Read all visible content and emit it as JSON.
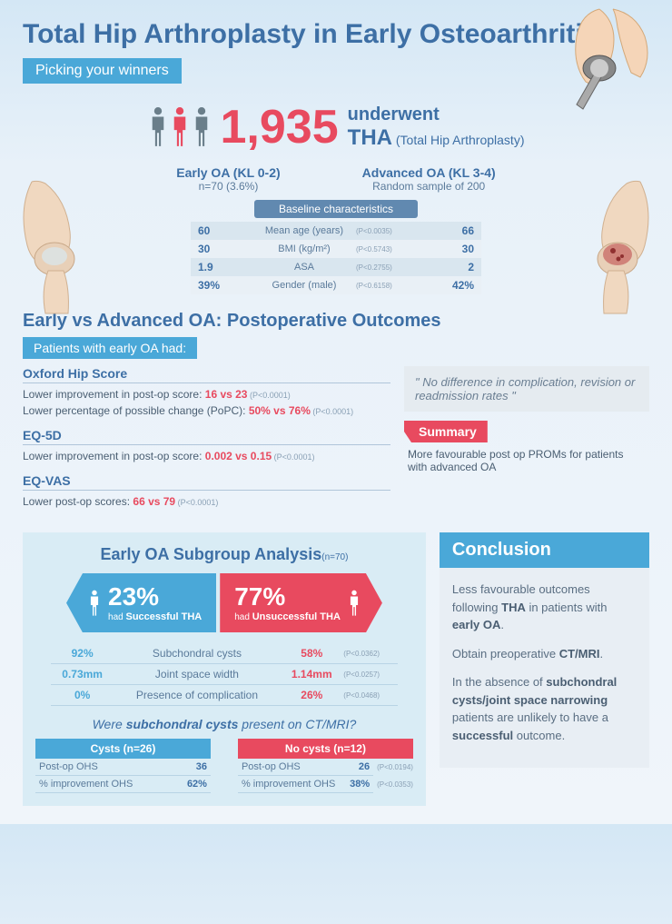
{
  "title": "Total Hip Arthroplasty in Early Osteoarthritis",
  "subtitle": "Picking your winners",
  "stat": {
    "number": "1,935",
    "line1": "underwent",
    "line1b": "THA",
    "line2": "(Total Hip Arthroplasty)"
  },
  "colors": {
    "blue": "#4aa8d8",
    "darkblue": "#3d6fa5",
    "red": "#e84a5f",
    "gray": "#6a7e8a"
  },
  "groups": {
    "early": {
      "title": "Early OA (KL 0-2)",
      "sub": "n=70 (3.6%)"
    },
    "advanced": {
      "title": "Advanced OA (KL 3-4)",
      "sub": "Random sample of 200"
    }
  },
  "baseline": {
    "tag": "Baseline characteristics",
    "rows": [
      {
        "v1": "60",
        "label": "Mean age (years)",
        "pval": "(P<0.0035)",
        "v2": "66"
      },
      {
        "v1": "30",
        "label": "BMI (kg/m²)",
        "pval": "(P<0.5743)",
        "v2": "30"
      },
      {
        "v1": "1.9",
        "label": "ASA",
        "pval": "(P<0.2755)",
        "v2": "2"
      },
      {
        "v1": "39%",
        "label": "Gender (male)",
        "pval": "(P<0.6158)",
        "v2": "42%"
      }
    ]
  },
  "outcomes": {
    "title": "Early vs Advanced OA: Postoperative Outcomes",
    "subtag": "Patients with early OA had:",
    "metrics": [
      {
        "title": "Oxford Hip Score",
        "lines": [
          {
            "t1": "Lower improvement in post-op score: ",
            "hl": "16 vs 23",
            "pv": " (P<0.0001)"
          },
          {
            "t1": "Lower percentage of possible change (PoPC): ",
            "hl": "50% vs 76%",
            "pv": " (P<0.0001)"
          }
        ]
      },
      {
        "title": "EQ-5D",
        "lines": [
          {
            "t1": "Lower improvement in post-op score: ",
            "hl": "0.002 vs 0.15",
            "pv": " (P<0.0001)"
          }
        ]
      },
      {
        "title": "EQ-VAS",
        "lines": [
          {
            "t1": "Lower post-op scores: ",
            "hl": "66 vs 79",
            "pv": " (P<0.0001)"
          }
        ]
      }
    ],
    "quote": "\" No difference in complication, revision or readmission rates \"",
    "summary_tag": "Summary",
    "summary_text": "More favourable post op PROMs for patients with advanced OA"
  },
  "subgroup": {
    "title": "Early OA Subgroup Analysis",
    "n": "(n=70)",
    "success": {
      "pct": "23%",
      "lbl1": "had ",
      "lbl2": "Successful THA"
    },
    "fail": {
      "pct": "77%",
      "lbl1": "had ",
      "lbl2": "Unsuccessful THA"
    },
    "rows": [
      {
        "v1": "92%",
        "lbl": "Subchondral cysts",
        "v2": "58%",
        "pv": "(P<0.0362)"
      },
      {
        "v1": "0.73mm",
        "lbl": "Joint space width",
        "v2": "1.14mm",
        "pv": "(P<0.0257)"
      },
      {
        "v1": "0%",
        "lbl": "Presence of complication",
        "v2": "26%",
        "pv": "(P<0.0468)"
      }
    ],
    "cysts_q1": "Were ",
    "cysts_q2": "subchondral cysts",
    "cysts_q3": " present on CT/MRI?",
    "cysts": {
      "header": "Cysts (n=26)",
      "lines": [
        {
          "lbl": "Post-op OHS",
          "val": "36"
        },
        {
          "lbl": "% improvement OHS",
          "val": "62%"
        }
      ]
    },
    "nocysts": {
      "header": "No cysts (n=12)",
      "lines": [
        {
          "lbl": "Post-op OHS",
          "val": "26",
          "pv": "(P<0.0194)"
        },
        {
          "lbl": "% improvement OHS",
          "val": "38%",
          "pv": "(P<0.0353)"
        }
      ]
    }
  },
  "conclusion": {
    "header": "Conclusion",
    "p1a": "Less favourable outcomes following ",
    "p1b": "THA",
    "p1c": " in patients with ",
    "p1d": "early OA",
    "p1e": ".",
    "p2a": "Obtain preoperative ",
    "p2b": "CT/MRI",
    "p2c": ".",
    "p3a": "In the absence of ",
    "p3b": "subchondral cysts/joint space narrowing",
    "p3c": " patients are unlikely to have a ",
    "p3d": "successful",
    "p3e": " outcome."
  }
}
